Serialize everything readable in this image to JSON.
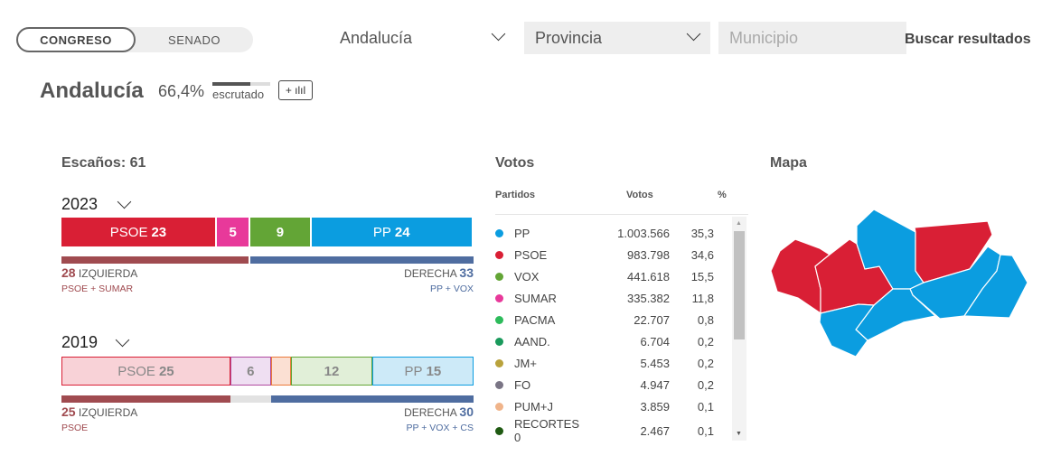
{
  "chamber_toggle": {
    "options": [
      "CONGRESO",
      "SENADO"
    ],
    "selected": "CONGRESO"
  },
  "filters": {
    "region": "Andalucía",
    "province_placeholder": "Provincia",
    "municipality_placeholder": "Municipio",
    "search_label": "Buscar resultados"
  },
  "header": {
    "title": "Andalucía",
    "scrutinized_pct": "66,4%",
    "scrutinized_fraction": 0.664,
    "scrutinized_label": "escrutado",
    "compare_button": "+ ılıl"
  },
  "seats": {
    "title": "Escaños: 61",
    "total": 61,
    "years": [
      {
        "year": "2023",
        "parties": [
          {
            "name": "PSOE",
            "seats": 23,
            "color": "#d91f35"
          },
          {
            "name": "",
            "seats": 5,
            "color": "#e8399a"
          },
          {
            "name": "",
            "seats": 9,
            "color": "#63a536"
          },
          {
            "name": "PP",
            "seats": 24,
            "color": "#0b9de0"
          }
        ],
        "left": {
          "seats": "28",
          "label": "IZQUIERDA",
          "parties": "PSOE + SUMAR"
        },
        "right": {
          "seats": "33",
          "label": "DERECHA",
          "parties": "PP + VOX"
        },
        "neutral": 0
      },
      {
        "year": "2019",
        "parties": [
          {
            "name": "PSOE",
            "seats": 25,
            "color": "#d91f35",
            "bg": "#f8d2d7"
          },
          {
            "name": "",
            "seats": 6,
            "color": "#b04aa0",
            "bg": "#efdff2"
          },
          {
            "name": "",
            "seats": 3,
            "color": "#eb7a3a",
            "bg": "#fbe0d3"
          },
          {
            "name": "",
            "seats": 12,
            "color": "#63a536",
            "bg": "#e1efd8"
          },
          {
            "name": "PP",
            "seats": 15,
            "color": "#0b9de0",
            "bg": "#cdeaf8"
          }
        ],
        "left": {
          "seats": "25",
          "label": "IZQUIERDA",
          "parties": "PSOE"
        },
        "right": {
          "seats": "30",
          "label": "DERECHA",
          "parties": "PP + VOX + CS"
        },
        "neutral": 6
      }
    ],
    "left_color": "#a04b50",
    "right_color": "#4f6da0"
  },
  "votes": {
    "title": "Votos",
    "headers": [
      "Partidos",
      "Votos",
      "%"
    ],
    "rows": [
      {
        "party": "PP",
        "votes": "1.003.566",
        "pct": "35,3",
        "color": "#0b9de0"
      },
      {
        "party": "PSOE",
        "votes": "983.798",
        "pct": "34,6",
        "color": "#d91f35"
      },
      {
        "party": "VOX",
        "votes": "441.618",
        "pct": "15,5",
        "color": "#63a536"
      },
      {
        "party": "SUMAR",
        "votes": "335.382",
        "pct": "11,8",
        "color": "#e8399a"
      },
      {
        "party": "PACMA",
        "votes": "22.707",
        "pct": "0,8",
        "color": "#2dbb5b"
      },
      {
        "party": "AAND.",
        "votes": "6.704",
        "pct": "0,2",
        "color": "#1a9a5c"
      },
      {
        "party": "JM+",
        "votes": "5.453",
        "pct": "0,2",
        "color": "#b9a23c"
      },
      {
        "party": "FO",
        "votes": "4.947",
        "pct": "0,2",
        "color": "#7a7585"
      },
      {
        "party": "PUM+J",
        "votes": "3.859",
        "pct": "0,1",
        "color": "#f0b48a"
      },
      {
        "party": "RECORTES 0",
        "votes": "2.467",
        "pct": "0,1",
        "color": "#1f5a12"
      }
    ]
  },
  "map": {
    "title": "Mapa",
    "provinces": [
      {
        "name": "Huelva",
        "winner_color": "#d91f35"
      },
      {
        "name": "Sevilla",
        "winner_color": "#d91f35"
      },
      {
        "name": "Córdoba",
        "winner_color": "#0b9de0"
      },
      {
        "name": "Jaén",
        "winner_color": "#d91f35"
      },
      {
        "name": "Granada",
        "winner_color": "#0b9de0"
      },
      {
        "name": "Almería",
        "winner_color": "#0b9de0"
      },
      {
        "name": "Málaga",
        "winner_color": "#0b9de0"
      },
      {
        "name": "Cádiz",
        "winner_color": "#0b9de0"
      }
    ]
  }
}
